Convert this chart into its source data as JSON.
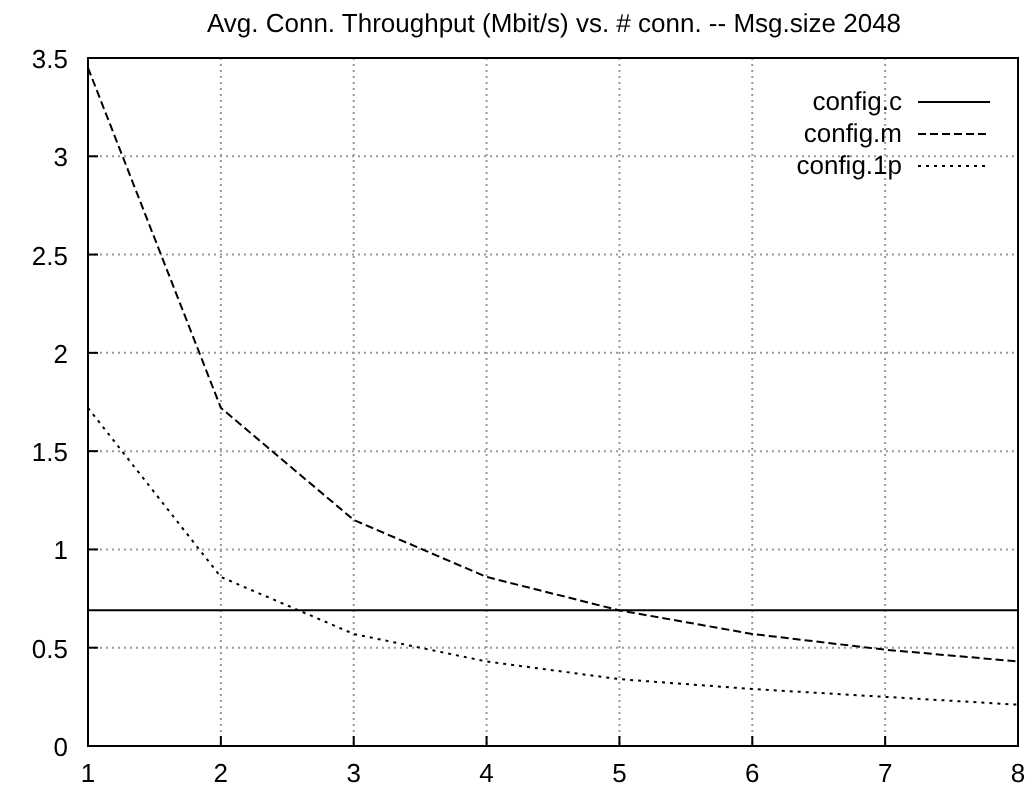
{
  "chart_data": {
    "type": "line",
    "title": "Avg. Conn. Throughput (Mbit/s) vs. # conn. -- Msg.size 2048",
    "x": [
      1,
      2,
      3,
      4,
      5,
      6,
      7,
      8
    ],
    "series": [
      {
        "name": "config.c",
        "color": "#000000",
        "line_style": "solid",
        "values": [
          0.69,
          0.69,
          0.69,
          0.69,
          0.69,
          0.69,
          0.69,
          0.69
        ]
      },
      {
        "name": "config.m",
        "color": "#000000",
        "line_style": "dashed",
        "values": [
          3.45,
          1.72,
          1.15,
          0.86,
          0.69,
          0.57,
          0.49,
          0.43
        ]
      },
      {
        "name": "config.1p",
        "color": "#000000",
        "line_style": "dotted",
        "values": [
          1.72,
          0.86,
          0.57,
          0.43,
          0.34,
          0.29,
          0.25,
          0.21
        ]
      }
    ],
    "xlim": [
      1,
      8
    ],
    "xticks": [
      1,
      2,
      3,
      4,
      5,
      6,
      7,
      8
    ],
    "ylim": [
      0,
      3.5
    ],
    "yticks": [
      0,
      0.5,
      1,
      1.5,
      2,
      2.5,
      3,
      3.5
    ],
    "grid": true,
    "legend": "top right",
    "marker": "none"
  }
}
